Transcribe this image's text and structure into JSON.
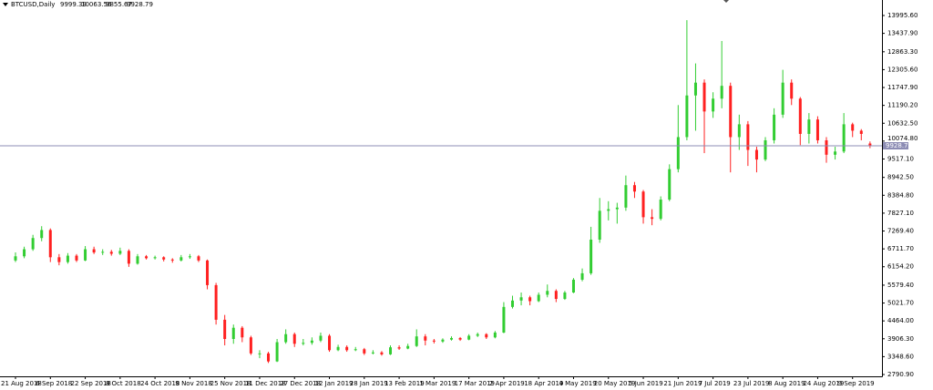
{
  "chart_data": {
    "type": "candlestick",
    "symbol": "BTCUSD,Daily",
    "categories": [
      "21 Aug 2018",
      null,
      null,
      null,
      "6 Sep 2018",
      null,
      null,
      null,
      "22 Sep 2018",
      null,
      null,
      null,
      "8 Oct 2018",
      null,
      null,
      null,
      "24 Oct 2018",
      null,
      null,
      null,
      "9 Nov 2018",
      null,
      null,
      null,
      "25 Nov 2018",
      null,
      null,
      null,
      "11 Dec 2018",
      null,
      null,
      null,
      "27 Dec 2018",
      null,
      null,
      null,
      "12 Jan 2019",
      null,
      null,
      null,
      "28 Jan 2019",
      null,
      null,
      null,
      "13 Feb 2019",
      null,
      null,
      null,
      "1 Mar 2019",
      null,
      null,
      null,
      "17 Mar 2019",
      null,
      null,
      null,
      "2 Apr 2019",
      null,
      null,
      null,
      "18 Apr 2019",
      null,
      null,
      null,
      "4 May 2019",
      null,
      null,
      null,
      "20 May 2019",
      null,
      null,
      null,
      "5 Jun 2019",
      null,
      null,
      null,
      "21 Jun 2019",
      null,
      null,
      null,
      "7 Jul 2019",
      null,
      null,
      null,
      "23 Jul 2019",
      null,
      null,
      null,
      "8 Aug 2019",
      null,
      null,
      null,
      "24 Aug 2019",
      null,
      null,
      null,
      "9 Sep 2019",
      null,
      null
    ],
    "open": [
      6350,
      6480,
      6700,
      7050,
      7300,
      6450,
      6300,
      6500,
      6350,
      6700,
      6600,
      6620,
      6560,
      6650,
      6250,
      6480,
      6420,
      6450,
      6380,
      6350,
      6450,
      6480,
      6350,
      5580,
      4500,
      3900,
      4250,
      3950,
      3450,
      3450,
      3200,
      3800,
      4050,
      3750,
      3780,
      3850,
      4000,
      3550,
      3650,
      3550,
      3580,
      3450,
      3480,
      3420,
      3640,
      3600,
      3680,
      3980,
      3850,
      3820,
      3880,
      3930,
      3880,
      4000,
      4050,
      3950,
      4100,
      4900,
      5100,
      5200,
      5080,
      5280,
      5400,
      5150,
      5350,
      5750,
      5950,
      7000,
      7900,
      7950,
      8000,
      8700,
      8500,
      7700,
      7650,
      8250,
      9200,
      10200,
      11500,
      11900,
      11000,
      11400,
      11800,
      10200,
      10600,
      9800,
      9500,
      10100,
      10900,
      11900,
      11400,
      10300,
      10750,
      10100,
      9650,
      9750,
      10600,
      10400,
      9999.39
    ],
    "high": [
      6600,
      6780,
      7150,
      7420,
      7350,
      6550,
      6580,
      6550,
      6800,
      6780,
      6700,
      6680,
      6750,
      6700,
      6550,
      6520,
      6500,
      6480,
      6420,
      6520,
      6550,
      6520,
      6380,
      5650,
      4650,
      4350,
      4300,
      4000,
      3550,
      3500,
      3900,
      4200,
      4100,
      3900,
      3950,
      4100,
      4050,
      3720,
      3700,
      3650,
      3620,
      3550,
      3520,
      3700,
      3700,
      3750,
      4200,
      4050,
      3900,
      3920,
      3980,
      3960,
      4050,
      4100,
      4080,
      4150,
      5050,
      5250,
      5350,
      5250,
      5350,
      5600,
      5450,
      5400,
      5800,
      6100,
      7400,
      8300,
      8200,
      8150,
      9000,
      8800,
      8550,
      7950,
      8350,
      9350,
      11200,
      13850,
      12500,
      12000,
      11600,
      13200,
      11900,
      10900,
      10700,
      9900,
      10200,
      11100,
      12300,
      12000,
      11450,
      10950,
      10850,
      10200,
      9900,
      10950,
      10650,
      10450,
      10063.56
    ],
    "low": [
      6300,
      6420,
      6650,
      6950,
      6300,
      6200,
      6250,
      6300,
      6330,
      6550,
      6520,
      6500,
      6520,
      6150,
      6220,
      6380,
      6380,
      6320,
      6280,
      6320,
      6400,
      6300,
      5450,
      4350,
      3700,
      3750,
      3800,
      3400,
      3300,
      3150,
      3180,
      3750,
      3650,
      3700,
      3720,
      3800,
      3500,
      3520,
      3500,
      3520,
      3400,
      3420,
      3380,
      3400,
      3560,
      3580,
      3650,
      3700,
      3760,
      3780,
      3850,
      3840,
      3860,
      3960,
      3900,
      3920,
      4080,
      4850,
      4950,
      4950,
      5050,
      5200,
      5050,
      5120,
      5330,
      5700,
      5900,
      6900,
      7600,
      7500,
      7900,
      8300,
      7500,
      7450,
      7600,
      8200,
      9100,
      10100,
      10400,
      9700,
      10800,
      11100,
      9100,
      9800,
      9300,
      9100,
      9450,
      10000,
      10800,
      11200,
      9950,
      10000,
      10000,
      9400,
      9500,
      9700,
      10200,
      10100,
      9855.67
    ],
    "close": [
      6480,
      6700,
      7050,
      7300,
      6450,
      6300,
      6500,
      6350,
      6700,
      6600,
      6620,
      6560,
      6650,
      6250,
      6480,
      6420,
      6450,
      6380,
      6350,
      6450,
      6480,
      6350,
      5580,
      4500,
      3900,
      4250,
      3950,
      3450,
      3450,
      3200,
      3800,
      4050,
      3750,
      3780,
      3850,
      4000,
      3550,
      3650,
      3550,
      3580,
      3450,
      3480,
      3420,
      3640,
      3600,
      3680,
      3980,
      3850,
      3820,
      3880,
      3930,
      3880,
      4000,
      4050,
      3950,
      4100,
      4900,
      5100,
      5200,
      5080,
      5280,
      5400,
      5150,
      5350,
      5750,
      5950,
      7000,
      7900,
      7950,
      8000,
      8700,
      8500,
      7700,
      7650,
      8250,
      9200,
      10200,
      11500,
      11900,
      11000,
      11400,
      11800,
      10200,
      10600,
      9800,
      9500,
      10100,
      10900,
      11900,
      11400,
      10300,
      10750,
      10100,
      9650,
      9750,
      10600,
      10400,
      10300,
      9928.79
    ],
    "up_color": "#32cd32",
    "down_color": "#ff2020",
    "price_line_color": "#8c8cb4",
    "ylim": [
      2734,
      14479
    ],
    "yticks": [
      {
        "value": 2790.9,
        "label": "2790.90"
      },
      {
        "value": 3348.6,
        "label": "3348.60"
      },
      {
        "value": 3906.3,
        "label": "3906.30"
      },
      {
        "value": 4464,
        "label": "4464.00"
      },
      {
        "value": 5021.7,
        "label": "5021.70"
      },
      {
        "value": 5579.4,
        "label": "5579.40"
      },
      {
        "value": 6154.2,
        "label": "6154.20"
      },
      {
        "value": 6711.7,
        "label": "6711.70"
      },
      {
        "value": 7269.4,
        "label": "7269.40"
      },
      {
        "value": 7827.1,
        "label": "7827.10"
      },
      {
        "value": 8384.8,
        "label": "8384.80"
      },
      {
        "value": 8942.5,
        "label": "8942.50"
      },
      {
        "value": 9517.1,
        "label": "9517.10"
      },
      {
        "value": 10074.8,
        "label": "10074.80"
      },
      {
        "value": 10632.5,
        "label": "10632.50"
      },
      {
        "value": 11190.2,
        "label": "11190.20"
      },
      {
        "value": 11747.9,
        "label": "11747.90"
      },
      {
        "value": 12305.6,
        "label": "12305.60"
      },
      {
        "value": 12863.3,
        "label": "12863.30"
      },
      {
        "value": 13437.9,
        "label": "13437.90"
      },
      {
        "value": 13995.6,
        "label": "13995.60"
      }
    ]
  }
}
